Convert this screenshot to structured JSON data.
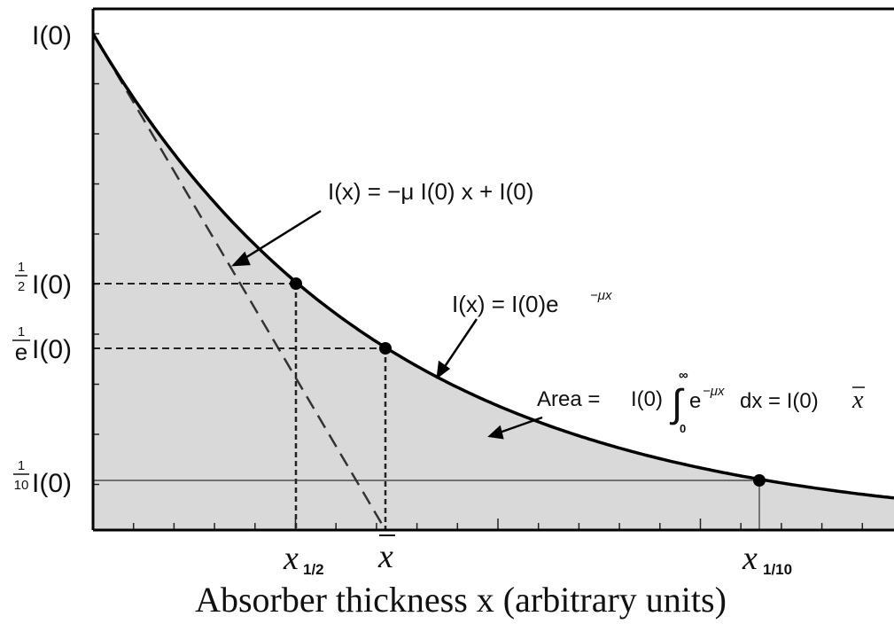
{
  "y_axis_labels": [
    {
      "text": "I(0)"
    },
    {
      "numerator": "1",
      "denominator": "2",
      "text": "I(0)"
    },
    {
      "numerator": "1",
      "denominator": "e",
      "text": "I(0)"
    },
    {
      "numerator": "1",
      "denominator": "10",
      "text": "I(0)"
    }
  ],
  "x_axis_labels": [
    {
      "text": "x",
      "subscript": "1/2"
    },
    {
      "text": "x"
    },
    {
      "text": "x",
      "subscript": "1/10"
    }
  ],
  "annotations": {
    "tangent": "I(x) = −μ I(0) x + I(0)",
    "exponential": {
      "text": "I(x) = I(0)e",
      "superscript": "−μx"
    },
    "area": {
      "label": "Area =",
      "prefix": "I(0)",
      "integral": "∫",
      "upper": "∞",
      "lower": "0",
      "integrand": "e",
      "superscript": "−μx",
      "suffix": "dx = I(0)",
      "result": "x"
    }
  },
  "x_axis_title": "Absorber thickness x (arbitrary units)"
}
